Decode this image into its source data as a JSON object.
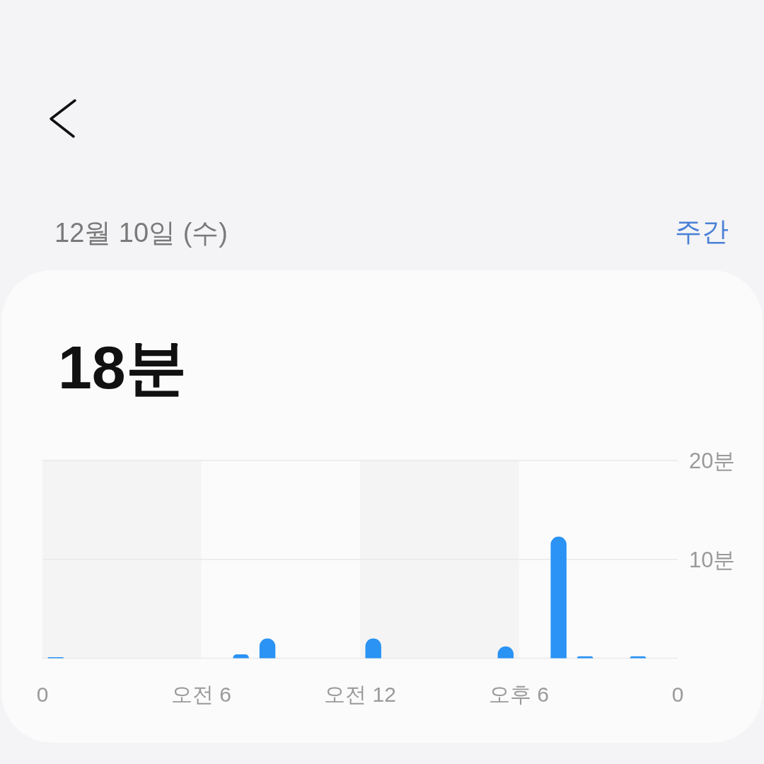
{
  "chart_data": {
    "type": "bar",
    "title": "12월 10일 (수)",
    "subtitle": "18분",
    "annotations": [
      "주간"
    ],
    "categories": [
      "0",
      null,
      null,
      null,
      null,
      null,
      null,
      null,
      null,
      null,
      null,
      null,
      "오전 6",
      null,
      null,
      null,
      null,
      null,
      null,
      null,
      null,
      null,
      null,
      null,
      "오전 12",
      null,
      null,
      null,
      null,
      null,
      null,
      null,
      null,
      null,
      null,
      null,
      "오후 6",
      null,
      null,
      null,
      null,
      null,
      null,
      null,
      null,
      null,
      null,
      null,
      "0"
    ],
    "values": [
      null,
      0.1,
      null,
      null,
      null,
      null,
      null,
      null,
      null,
      null,
      null,
      null,
      null,
      null,
      null,
      0.4,
      null,
      2.0,
      null,
      null,
      null,
      null,
      null,
      null,
      null,
      2.0,
      null,
      null,
      null,
      null,
      null,
      null,
      null,
      null,
      null,
      1.2,
      null,
      null,
      null,
      12.3,
      null,
      0.2,
      null,
      null,
      null,
      0.2,
      null,
      null,
      null
    ],
    "color": "#2a93f4",
    "ylim": [
      0,
      20
    ],
    "yticks": [
      {
        "value": 0,
        "label": null
      },
      {
        "value": 10,
        "label": "10분"
      },
      {
        "value": 20,
        "label": "20분"
      }
    ],
    "grid": "y",
    "bands": [
      {
        "axis": "x",
        "from": "0",
        "to": "오전 6",
        "color": "#f4f4f4"
      },
      {
        "axis": "x",
        "from": "오전 12",
        "to": "오후 6",
        "color": "#f4f4f4"
      }
    ]
  }
}
